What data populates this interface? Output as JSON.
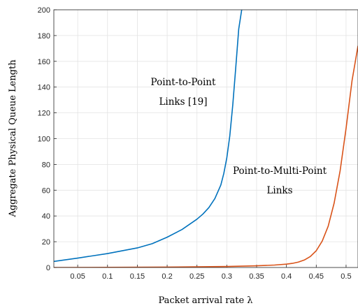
{
  "chart_data": {
    "type": "line",
    "xlabel": "Packet arrival rate λ",
    "ylabel": "Aggregate Physical Queue Length",
    "xlim": [
      0.01,
      0.52
    ],
    "ylim": [
      0,
      200
    ],
    "xticks": [
      0.05,
      0.1,
      0.15,
      0.2,
      0.25,
      0.3,
      0.35,
      0.4,
      0.45,
      0.5
    ],
    "xtick_labels": [
      "0.05",
      "0.1",
      "0.15",
      "0.2",
      "0.25",
      "0.3",
      "0.35",
      "0.4",
      "0.45",
      "0.5"
    ],
    "yticks": [
      0,
      20,
      40,
      60,
      80,
      100,
      120,
      140,
      160,
      180,
      200
    ],
    "ytick_labels": [
      "0",
      "20",
      "40",
      "60",
      "80",
      "100",
      "120",
      "140",
      "160",
      "180",
      "200"
    ],
    "grid": true,
    "series": [
      {
        "color": "#0072BD",
        "x": [
          0.01,
          0.05,
          0.1,
          0.15,
          0.175,
          0.2,
          0.225,
          0.25,
          0.26,
          0.27,
          0.28,
          0.29,
          0.295,
          0.3,
          0.305,
          0.31,
          0.315,
          0.32,
          0.325
        ],
        "y": [
          4.7,
          7.3,
          10.8,
          15.2,
          18.5,
          23.5,
          29.5,
          37.5,
          41.5,
          46.5,
          53.5,
          64.0,
          73.0,
          85.0,
          102.0,
          126.0,
          155.0,
          185.0,
          200.0
        ]
      },
      {
        "color": "#D95319",
        "x": [
          0.01,
          0.1,
          0.2,
          0.3,
          0.35,
          0.38,
          0.4,
          0.41,
          0.42,
          0.43,
          0.44,
          0.45,
          0.46,
          0.47,
          0.48,
          0.49,
          0.5,
          0.51,
          0.52
        ],
        "y": [
          0.0,
          0.1,
          0.3,
          0.8,
          1.3,
          1.9,
          2.6,
          3.2,
          4.2,
          5.8,
          8.5,
          13.0,
          20.5,
          32.0,
          50.0,
          75.0,
          108.0,
          145.0,
          172.0
        ]
      }
    ],
    "annotations": [
      {
        "lines": [
          "Point-to-Point",
          "Links [19]"
        ]
      },
      {
        "lines": [
          "Point-to-Multi-Point",
          "Links"
        ]
      }
    ]
  }
}
